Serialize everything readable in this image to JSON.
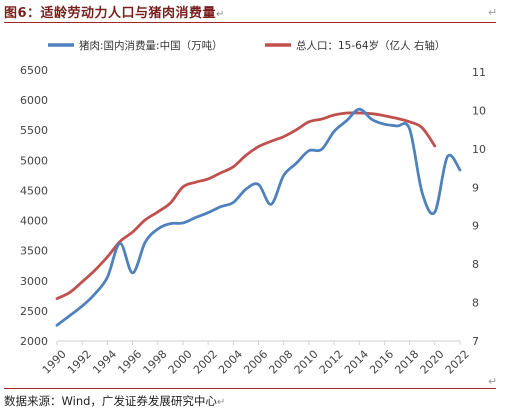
{
  "header": {
    "title": "图6：适龄劳动力人口与猪肉消费量",
    "return_mark": "↵"
  },
  "footer": {
    "source": "数据来源：Wind，广发证券发展研究中心",
    "return_mark": "↵"
  },
  "corner_marks": {
    "top_right": "↵",
    "bottom_right": "↵"
  },
  "chart_data": {
    "type": "line",
    "title": "",
    "xlabel": "",
    "ylabel": "",
    "x_tick_labels": [
      "1990",
      "1992",
      "1994",
      "1996",
      "1998",
      "2000",
      "2002",
      "2004",
      "2006",
      "2008",
      "2010",
      "2012",
      "2014",
      "2016",
      "2018",
      "2020",
      "2022"
    ],
    "y_left_ticks": [
      "2000",
      "2500",
      "3000",
      "3500",
      "4000",
      "4500",
      "5000",
      "5500",
      "6000",
      "6500"
    ],
    "y_left_range": [
      2000,
      6500
    ],
    "y_right_ticks": [
      "7",
      "8",
      "8",
      "9",
      "9",
      "10",
      "10",
      "11"
    ],
    "y_right_range": [
      7,
      11
    ],
    "legend_position": "top",
    "grid": false,
    "series": [
      {
        "name": "猪肉:国内消费量:中国（万吨）",
        "axis": "left",
        "color": "#4f81bd",
        "x": [
          1990,
          1991,
          1992,
          1993,
          1994,
          1995,
          1996,
          1997,
          1998,
          1999,
          2000,
          2001,
          2002,
          2003,
          2004,
          2005,
          2006,
          2007,
          2008,
          2009,
          2010,
          2011,
          2012,
          2013,
          2014,
          2015,
          2016,
          2017,
          2018,
          2019,
          2020,
          2021,
          2022
        ],
        "values": [
          2260,
          2420,
          2580,
          2780,
          3060,
          3620,
          3130,
          3640,
          3860,
          3950,
          3960,
          4050,
          4130,
          4230,
          4300,
          4520,
          4600,
          4270,
          4750,
          4950,
          5160,
          5180,
          5480,
          5660,
          5850,
          5680,
          5600,
          5570,
          5520,
          4460,
          4140,
          5060,
          4840
        ]
      },
      {
        "name": "总人口：15-64岁（亿人 右轴）",
        "axis": "right",
        "color": "#c0504d",
        "x": [
          1990,
          1991,
          1992,
          1993,
          1994,
          1995,
          1996,
          1997,
          1998,
          1999,
          2000,
          2001,
          2002,
          2003,
          2004,
          2005,
          2006,
          2007,
          2008,
          2009,
          2010,
          2011,
          2012,
          2013,
          2014,
          2015,
          2016,
          2017,
          2018,
          2019,
          2020
        ],
        "values": [
          7.63,
          7.72,
          7.88,
          8.05,
          8.25,
          8.48,
          8.62,
          8.8,
          8.92,
          9.05,
          9.29,
          9.36,
          9.41,
          9.5,
          9.59,
          9.76,
          9.89,
          9.97,
          10.04,
          10.14,
          10.26,
          10.3,
          10.36,
          10.39,
          10.39,
          10.38,
          10.35,
          10.31,
          10.26,
          10.17,
          9.9
        ]
      }
    ]
  }
}
